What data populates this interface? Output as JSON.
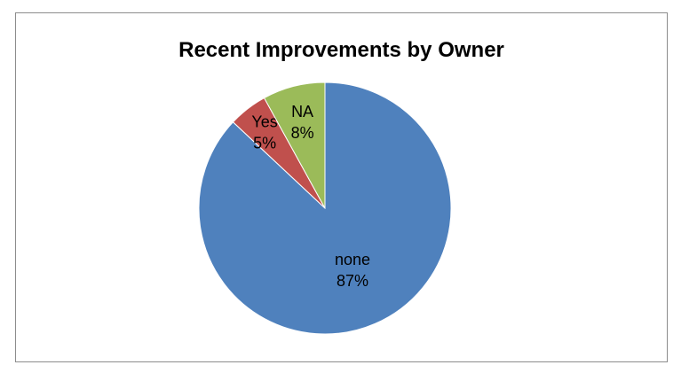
{
  "chart_data": {
    "type": "pie",
    "title": "Recent Improvements by Owner",
    "slices": [
      {
        "label": "none",
        "value": 87,
        "display": "87%",
        "color": "#4f81bd"
      },
      {
        "label": "Yes",
        "value": 5,
        "display": "5%",
        "color": "#c0504d"
      },
      {
        "label": "NA",
        "value": 8,
        "display": "8%",
        "color": "#9bbb59"
      }
    ],
    "legend": "none",
    "data_labels": "category and percentage"
  }
}
